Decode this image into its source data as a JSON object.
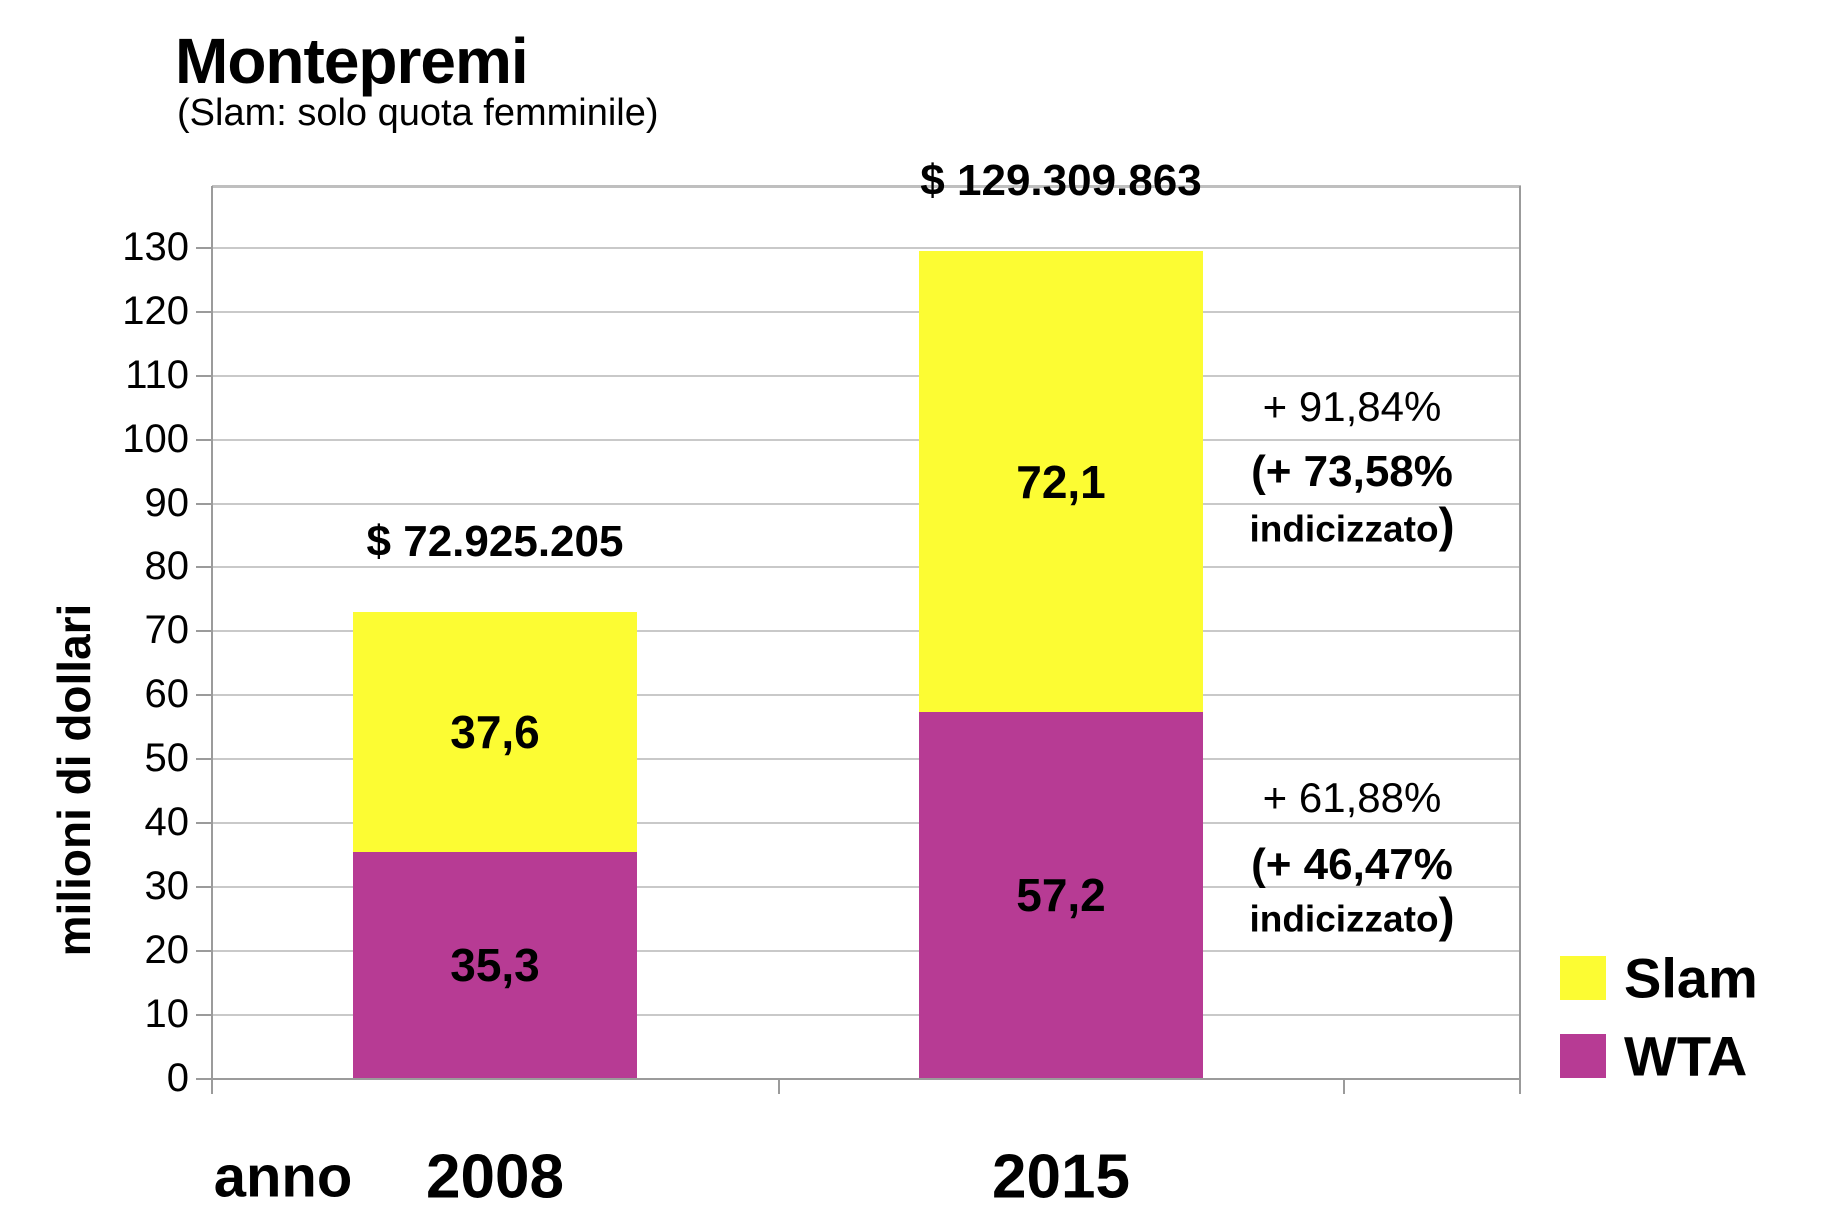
{
  "chart_data": {
    "type": "bar",
    "stacked": true,
    "title": "Montepremi",
    "subtitle": "(Slam: solo quota femminile)",
    "xlabel": "anno",
    "ylabel": "milioni di dollari",
    "categories": [
      "2008",
      "2015"
    ],
    "series": [
      {
        "name": "WTA",
        "color": "#b73b94",
        "values": [
          35.3,
          57.2
        ],
        "value_labels": [
          "35,3",
          "57,2"
        ]
      },
      {
        "name": "Slam",
        "color": "#fcfc33",
        "values": [
          37.6,
          72.1
        ],
        "value_labels": [
          "37,6",
          "72,1"
        ]
      }
    ],
    "bar_totals": [
      "$ 72.925.205",
      "$ 129.309.863"
    ],
    "y_ticks": [
      0,
      10,
      20,
      30,
      40,
      50,
      60,
      70,
      80,
      90,
      100,
      110,
      120,
      130
    ],
    "ylim": [
      0,
      139.5
    ],
    "grid": true,
    "legend": [
      "Slam",
      "WTA"
    ],
    "legend_position": "bottom-right",
    "annotations": [
      {
        "lines": [
          "+ 91,84%",
          "(+ 73,58%",
          "indicizzato)"
        ]
      },
      {
        "lines": [
          "+ 61,88%",
          "(+ 46,47%",
          "indicizzato)"
        ]
      }
    ]
  }
}
